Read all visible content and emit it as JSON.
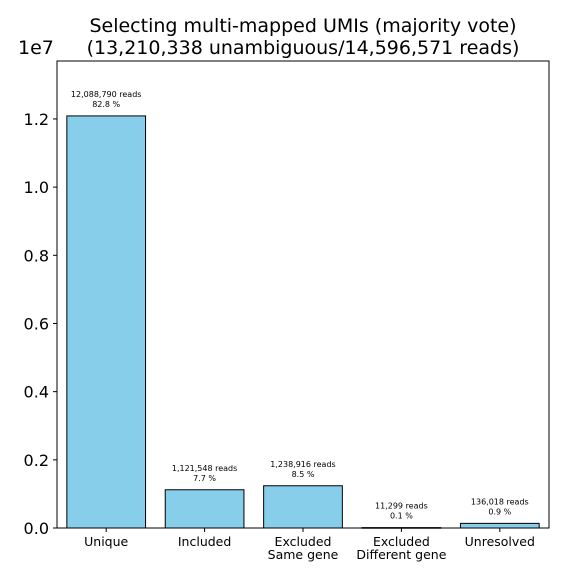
{
  "chart_data": {
    "type": "bar",
    "title": "Selecting multi-mapped UMIs (majority vote)",
    "subtitle": "(13,210,338 unambiguous/14,596,571 reads)",
    "xlabel": "",
    "ylabel": "",
    "y_multiplier": "1e7",
    "ylim": [
      0,
      13700000
    ],
    "yticks": [
      0,
      2000000,
      4000000,
      6000000,
      8000000,
      10000000,
      12000000
    ],
    "ytick_labels": [
      "0.0",
      "0.2",
      "0.4",
      "0.6",
      "0.8",
      "1.0",
      "1.2"
    ],
    "grid": false,
    "bar_color": "#87ceeb",
    "bar_edge_color": "#000000",
    "categories": [
      {
        "line1": "Unique",
        "line2": ""
      },
      {
        "line1": "Included",
        "line2": ""
      },
      {
        "line1": "Excluded",
        "line2": "Same gene"
      },
      {
        "line1": "Excluded",
        "line2": "Different gene"
      },
      {
        "line1": "Unresolved",
        "line2": ""
      }
    ],
    "values": [
      12088790,
      1121548,
      1238916,
      11299,
      136018
    ],
    "data_labels": [
      {
        "reads": "12,088,790 reads",
        "percent": "82.8 %"
      },
      {
        "reads": "1,121,548 reads",
        "percent": "7.7 %"
      },
      {
        "reads": "1,238,916 reads",
        "percent": "8.5 %"
      },
      {
        "reads": "11,299 reads",
        "percent": "0.1 %"
      },
      {
        "reads": "136,018 reads",
        "percent": "0.9 %"
      }
    ]
  }
}
